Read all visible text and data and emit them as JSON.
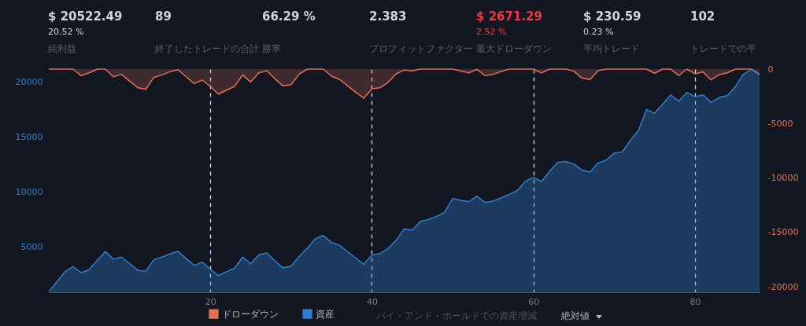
{
  "chart_data": [
    {
      "type": "other",
      "categories": [
        "純利益",
        "終了したトレードの合計",
        "勝率",
        "プロフィットファクター",
        "最大ドローダウン",
        "平均トレード",
        "トレードでの平"
      ],
      "value_labels": [
        "$ 20522.49",
        "89",
        "66.29 %",
        "2.383",
        "$ 2671.29",
        "$ 230.59",
        "102"
      ],
      "colors": [
        "#d1d4dc",
        "#d1d4dc",
        "#d1d4dc",
        "#d1d4dc",
        "#f23645",
        "#d1d4dc",
        "#d1d4dc"
      ],
      "annotations": [
        {
          "text": "20.52 %",
          "x": "純利益"
        },
        {
          "text": "2.52 %",
          "x": "最大ドローダウン"
        },
        {
          "text": "0.23 %",
          "x": "平均トレード"
        }
      ]
    },
    {
      "type": "area",
      "x": [
        0,
        1,
        2,
        3,
        4,
        5,
        6,
        7,
        8,
        9,
        10,
        11,
        12,
        13,
        14,
        15,
        16,
        17,
        18,
        19,
        20,
        21,
        22,
        23,
        24,
        25,
        26,
        27,
        28,
        29,
        30,
        31,
        32,
        33,
        34,
        35,
        36,
        37,
        38,
        39,
        40,
        41,
        42,
        43,
        44,
        45,
        46,
        47,
        48,
        49,
        50,
        51,
        52,
        53,
        54,
        55,
        56,
        57,
        58,
        59,
        60,
        61,
        62,
        63,
        64,
        65,
        66,
        67,
        68,
        69,
        70,
        71,
        72,
        73,
        74,
        75,
        76,
        77,
        78,
        79,
        80,
        81,
        82,
        83,
        84,
        85,
        86,
        87,
        88
      ],
      "series": [
        {
          "name": "ドローダウン",
          "color": "#e0705a",
          "axis": "y2",
          "values": [
            0,
            0,
            0,
            0,
            -600,
            -340,
            0,
            0,
            -700,
            -480,
            -1090,
            -1690,
            -1860,
            -770,
            -530,
            -240,
            -50,
            -700,
            -1330,
            -1010,
            -1590,
            -2290,
            -1930,
            -1590,
            -530,
            -1180,
            -340,
            -140,
            -890,
            -1540,
            -1420,
            -460,
            0,
            0,
            0,
            -650,
            -940,
            -1540,
            -2120,
            -2670,
            -1810,
            -1710,
            -1230,
            -430,
            -90,
            -170,
            0,
            0,
            0,
            0,
            0,
            -170,
            -340,
            -20,
            -580,
            -480,
            -220,
            0,
            0,
            0,
            0,
            -340,
            0,
            0,
            0,
            -190,
            -820,
            -960,
            -140,
            0,
            0,
            0,
            0,
            0,
            0,
            -380,
            0,
            0,
            -580,
            0,
            -430,
            -260,
            -990,
            -500,
            -340,
            0,
            0,
            0,
            -480
          ]
        },
        {
          "name": "資産",
          "color": "#2f7fd1",
          "values": [
            900,
            1820,
            2740,
            3210,
            2640,
            2930,
            3760,
            4570,
            3880,
            4070,
            3480,
            2880,
            2760,
            3830,
            4070,
            4360,
            4600,
            3930,
            3310,
            3600,
            2970,
            2380,
            2740,
            3050,
            4070,
            3450,
            4290,
            4450,
            3710,
            3090,
            3240,
            4120,
            4880,
            5740,
            6030,
            5390,
            5150,
            4550,
            3980,
            3400,
            4260,
            4380,
            4840,
            5600,
            6620,
            6510,
            7300,
            7490,
            7770,
            8130,
            9400,
            9230,
            9110,
            9610,
            9040,
            9160,
            9450,
            9780,
            10110,
            10950,
            11330,
            10930,
            11860,
            12690,
            12770,
            12550,
            11980,
            11810,
            12620,
            12880,
            13530,
            13650,
            14680,
            15580,
            17490,
            17160,
            17970,
            18830,
            18260,
            19050,
            18660,
            18830,
            18140,
            18590,
            18760,
            19570,
            20720,
            21120,
            20650
          ]
        }
      ],
      "xlim": [
        0,
        88
      ],
      "xticks": [
        20,
        40,
        60,
        80
      ],
      "ylim": [
        870,
        21170
      ],
      "yticks": [
        5000,
        10000,
        15000,
        20000
      ],
      "y2lim": [
        -20500,
        0
      ],
      "y2ticks": [
        -20000,
        -15000,
        -10000,
        -5000,
        0
      ],
      "grid": "x",
      "legend": "bottom",
      "annotations": [
        "バイ・アンド・ホールドでの資産増減",
        "絶対値"
      ]
    }
  ]
}
